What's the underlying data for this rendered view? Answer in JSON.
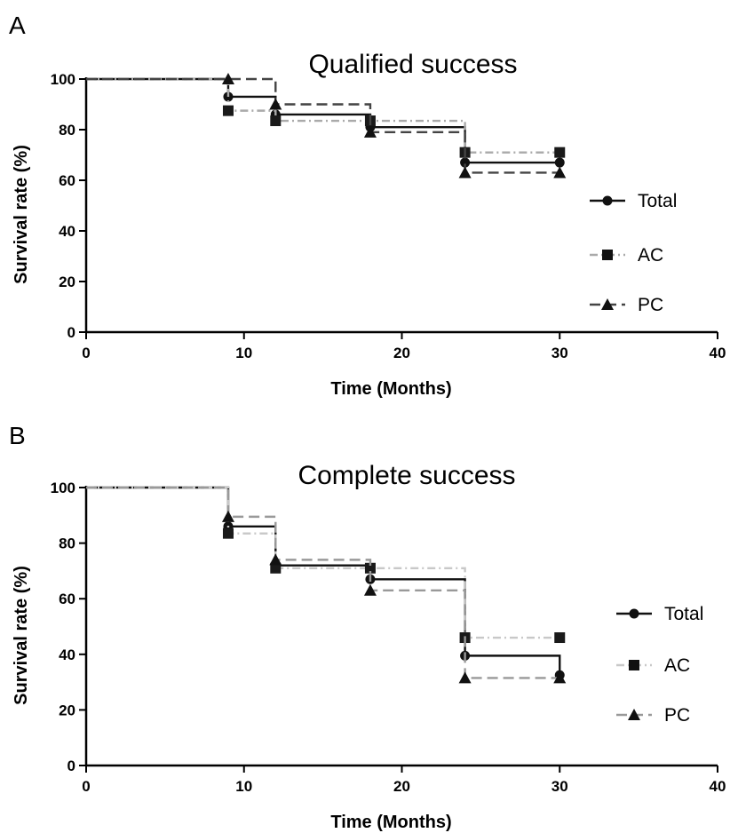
{
  "chart_data": [
    {
      "panel_label": "A",
      "type": "line",
      "step": true,
      "title": "Qualified success",
      "xlabel": "Time (Months)",
      "ylabel": "Survival rate (%)",
      "xlim": [
        0,
        40
      ],
      "ylim": [
        0,
        100
      ],
      "xticks": [
        "0",
        "10",
        "20",
        "30",
        "40"
      ],
      "yticks": [
        "0",
        "20",
        "40",
        "60",
        "80",
        "100"
      ],
      "grid": false,
      "legend_position": "right",
      "series": [
        {
          "name": "Total",
          "color": "#111111",
          "dash": "solid",
          "marker": "circle",
          "x": [
            0,
            9,
            12,
            18,
            24,
            30
          ],
          "y": [
            100,
            93,
            86,
            81,
            67,
            67
          ]
        },
        {
          "name": "AC",
          "color": "#aaaaaa",
          "dash": "dashdot",
          "marker": "square",
          "x": [
            0,
            9,
            12,
            18,
            24,
            30
          ],
          "y": [
            100,
            87.5,
            83.5,
            83.5,
            71,
            71
          ]
        },
        {
          "name": "PC",
          "color": "#444444",
          "dash": "dash",
          "marker": "triangle",
          "x": [
            0,
            9,
            12,
            18,
            24,
            30
          ],
          "y": [
            100,
            100,
            90,
            79,
            63,
            63
          ]
        }
      ]
    },
    {
      "panel_label": "B",
      "type": "line",
      "step": true,
      "title": "Complete success",
      "xlabel": "Time (Months)",
      "ylabel": "Survival rate (%)",
      "xlim": [
        0,
        40
      ],
      "ylim": [
        0,
        100
      ],
      "xticks": [
        "0",
        "10",
        "20",
        "30",
        "40"
      ],
      "yticks": [
        "0",
        "20",
        "40",
        "60",
        "80",
        "100"
      ],
      "grid": false,
      "legend_position": "right",
      "series": [
        {
          "name": "Total",
          "color": "#111111",
          "dash": "solid",
          "marker": "circle",
          "x": [
            0,
            9,
            12,
            18,
            24,
            30
          ],
          "y": [
            100,
            86,
            72,
            67,
            39.5,
            32.5
          ]
        },
        {
          "name": "AC",
          "color": "#c8c8c8",
          "dash": "dashdot",
          "marker": "square",
          "x": [
            0,
            9,
            12,
            18,
            24,
            30
          ],
          "y": [
            100,
            83.5,
            71,
            71,
            46,
            46
          ]
        },
        {
          "name": "PC",
          "color": "#999999",
          "dash": "dash",
          "marker": "triangle",
          "x": [
            0,
            9,
            12,
            18,
            24,
            30
          ],
          "y": [
            100,
            89.5,
            74,
            63,
            31.5,
            31.5
          ]
        }
      ]
    }
  ]
}
